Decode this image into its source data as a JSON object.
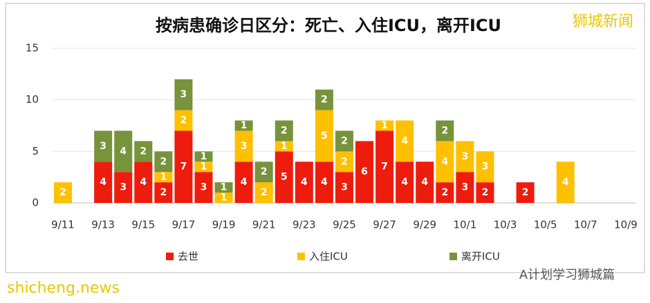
{
  "chart_data": {
    "type": "bar",
    "stacked": true,
    "title": "按病患确诊日区分：死亡、入住ICU，离开ICU",
    "watermark": "狮城新闻",
    "footer_left": "shicheng.news",
    "footer_right": "A计划学习狮城篇",
    "categories": [
      "9/11",
      null,
      "9/13",
      null,
      "9/15",
      null,
      "9/17",
      null,
      "9/19",
      null,
      "9/21",
      null,
      "9/23",
      null,
      "9/25",
      null,
      "9/27",
      null,
      "9/29",
      null,
      "10/1",
      null,
      "10/3",
      null,
      "10/5",
      null,
      "10/7",
      null,
      "10/9"
    ],
    "series": [
      {
        "name": "去世",
        "color": "#ee1c0d",
        "values": [
          0,
          0,
          4,
          3,
          4,
          2,
          7,
          3,
          0,
          4,
          0,
          5,
          4,
          4,
          3,
          6,
          7,
          4,
          4,
          2,
          3,
          2,
          0,
          2,
          0,
          0,
          0,
          0,
          0
        ]
      },
      {
        "name": "入住ICU",
        "color": "#ffc000",
        "values": [
          2,
          0,
          0,
          0,
          0,
          1,
          2,
          1,
          1,
          3,
          2,
          1,
          0,
          5,
          2,
          0,
          1,
          4,
          0,
          4,
          3,
          3,
          0,
          0,
          0,
          4,
          0,
          0,
          0
        ]
      },
      {
        "name": "离开ICU",
        "color": "#77933c",
        "values": [
          0,
          0,
          3,
          4,
          2,
          2,
          3,
          1,
          1,
          1,
          2,
          2,
          0,
          2,
          2,
          0,
          0,
          0,
          0,
          2,
          0,
          0,
          0,
          0,
          0,
          0,
          0,
          0,
          0
        ]
      }
    ],
    "ylim": [
      0,
      15
    ],
    "yticks": [
      0,
      5,
      10,
      15
    ],
    "grid": true,
    "legend": "bottom"
  }
}
